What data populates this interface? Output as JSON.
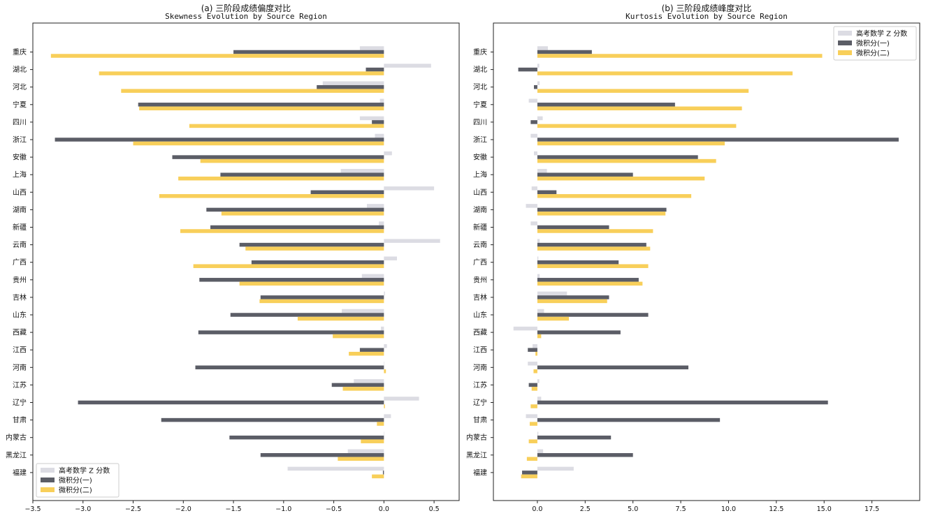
{
  "colors": {
    "gaokao": "#dcdce3",
    "calc1": "#5b5d66",
    "calc2": "#f8cf5a"
  },
  "legend": [
    "高考数学 Z 分数",
    "微积分(一)",
    "微积分(二)"
  ],
  "chart_data": [
    {
      "type": "bar",
      "orientation": "horizontal",
      "title": "(a) 三阶段成绩偏度对比",
      "subtitle": "Skewness Evolution by Source Region",
      "xlim": [
        -3.5,
        0.75
      ],
      "xticks": [
        -3.5,
        -3.0,
        -2.5,
        -2.0,
        -1.5,
        -1.0,
        -0.5,
        0.0,
        0.5
      ],
      "xtick_labels": [
        "−3.5",
        "−3.0",
        "−2.5",
        "−2.0",
        "−1.5",
        "−1.0",
        "−0.5",
        "0.0",
        "0.5"
      ],
      "legend_position": "lower-left",
      "categories": [
        "重庆",
        "湖北",
        "河北",
        "宁夏",
        "四川",
        "浙江",
        "安徽",
        "上海",
        "山西",
        "湖南",
        "新疆",
        "云南",
        "广西",
        "贵州",
        "吉林",
        "山东",
        "西藏",
        "江西",
        "河南",
        "江苏",
        "辽宁",
        "甘肃",
        "内蒙古",
        "黑龙江",
        "福建"
      ],
      "series": [
        {
          "name": "高考数学 Z 分数",
          "values": [
            -0.24,
            0.47,
            -0.61,
            -0.04,
            -0.24,
            -0.09,
            0.08,
            -0.43,
            0.5,
            -0.17,
            -0.05,
            0.56,
            0.13,
            -0.22,
            0.01,
            -0.42,
            -0.03,
            0.03,
            0.0,
            -0.3,
            0.35,
            0.07,
            0.0,
            -0.36,
            -0.96
          ]
        },
        {
          "name": "微积分(一)",
          "values": [
            -1.5,
            -0.18,
            -0.67,
            -2.45,
            -0.12,
            -3.28,
            -2.11,
            -1.63,
            -0.73,
            -1.77,
            -1.73,
            -1.44,
            -1.32,
            -1.84,
            -1.23,
            -1.53,
            -1.85,
            -0.24,
            -1.88,
            -0.52,
            -3.05,
            -2.22,
            -1.54,
            -1.23,
            -0.01
          ]
        },
        {
          "name": "微积分(二)",
          "values": [
            -3.32,
            -2.84,
            -2.62,
            -2.44,
            -1.94,
            -2.5,
            -1.83,
            -2.05,
            -2.24,
            -1.62,
            -2.03,
            -1.38,
            -1.9,
            -1.44,
            -1.24,
            -0.86,
            -0.51,
            -0.35,
            0.02,
            -0.41,
            0.01,
            -0.07,
            -0.23,
            -0.46,
            -0.12
          ]
        }
      ]
    },
    {
      "type": "bar",
      "orientation": "horizontal",
      "title": "(b) 三阶段成绩峰度对比",
      "subtitle": "Kurtosis Evolution by Source Region",
      "xlim": [
        -2.3,
        20.0
      ],
      "xticks": [
        0.0,
        2.5,
        5.0,
        7.5,
        10.0,
        12.5,
        15.0,
        17.5
      ],
      "xtick_labels": [
        "0.0",
        "2.5",
        "5.0",
        "7.5",
        "10.0",
        "12.5",
        "15.0",
        "17.5"
      ],
      "legend_position": "upper-right",
      "categories": [
        "重庆",
        "湖北",
        "河北",
        "宁夏",
        "四川",
        "浙江",
        "安徽",
        "上海",
        "山西",
        "湖南",
        "新疆",
        "云南",
        "广西",
        "贵州",
        "吉林",
        "山东",
        "西藏",
        "江西",
        "河南",
        "江苏",
        "辽宁",
        "甘肃",
        "内蒙古",
        "黑龙江",
        "福建"
      ],
      "series": [
        {
          "name": "高考数学 Z 分数",
          "values": [
            0.55,
            0.1,
            0.12,
            -0.45,
            0.28,
            -0.35,
            -0.18,
            0.5,
            -0.3,
            -0.6,
            -0.35,
            0.12,
            0.05,
            0.12,
            1.55,
            0.35,
            -1.25,
            -0.25,
            -0.5,
            0.1,
            0.2,
            -0.6,
            0.05,
            0.3,
            1.9
          ]
        },
        {
          "name": "微积分(一)",
          "values": [
            2.85,
            -1.0,
            -0.18,
            7.2,
            -0.35,
            18.9,
            8.4,
            5.0,
            1.0,
            6.75,
            3.75,
            5.7,
            4.25,
            5.3,
            3.75,
            5.8,
            4.35,
            -0.5,
            7.9,
            -0.45,
            15.2,
            9.55,
            3.85,
            5.0,
            -0.8
          ]
        },
        {
          "name": "微积分(二)",
          "values": [
            14.9,
            13.35,
            11.05,
            10.7,
            10.4,
            9.8,
            9.35,
            8.75,
            8.05,
            6.7,
            6.05,
            5.9,
            5.8,
            5.5,
            3.65,
            1.65,
            0.2,
            -0.1,
            -0.2,
            -0.3,
            -0.35,
            -0.4,
            -0.45,
            -0.55,
            -0.85
          ]
        }
      ]
    }
  ]
}
